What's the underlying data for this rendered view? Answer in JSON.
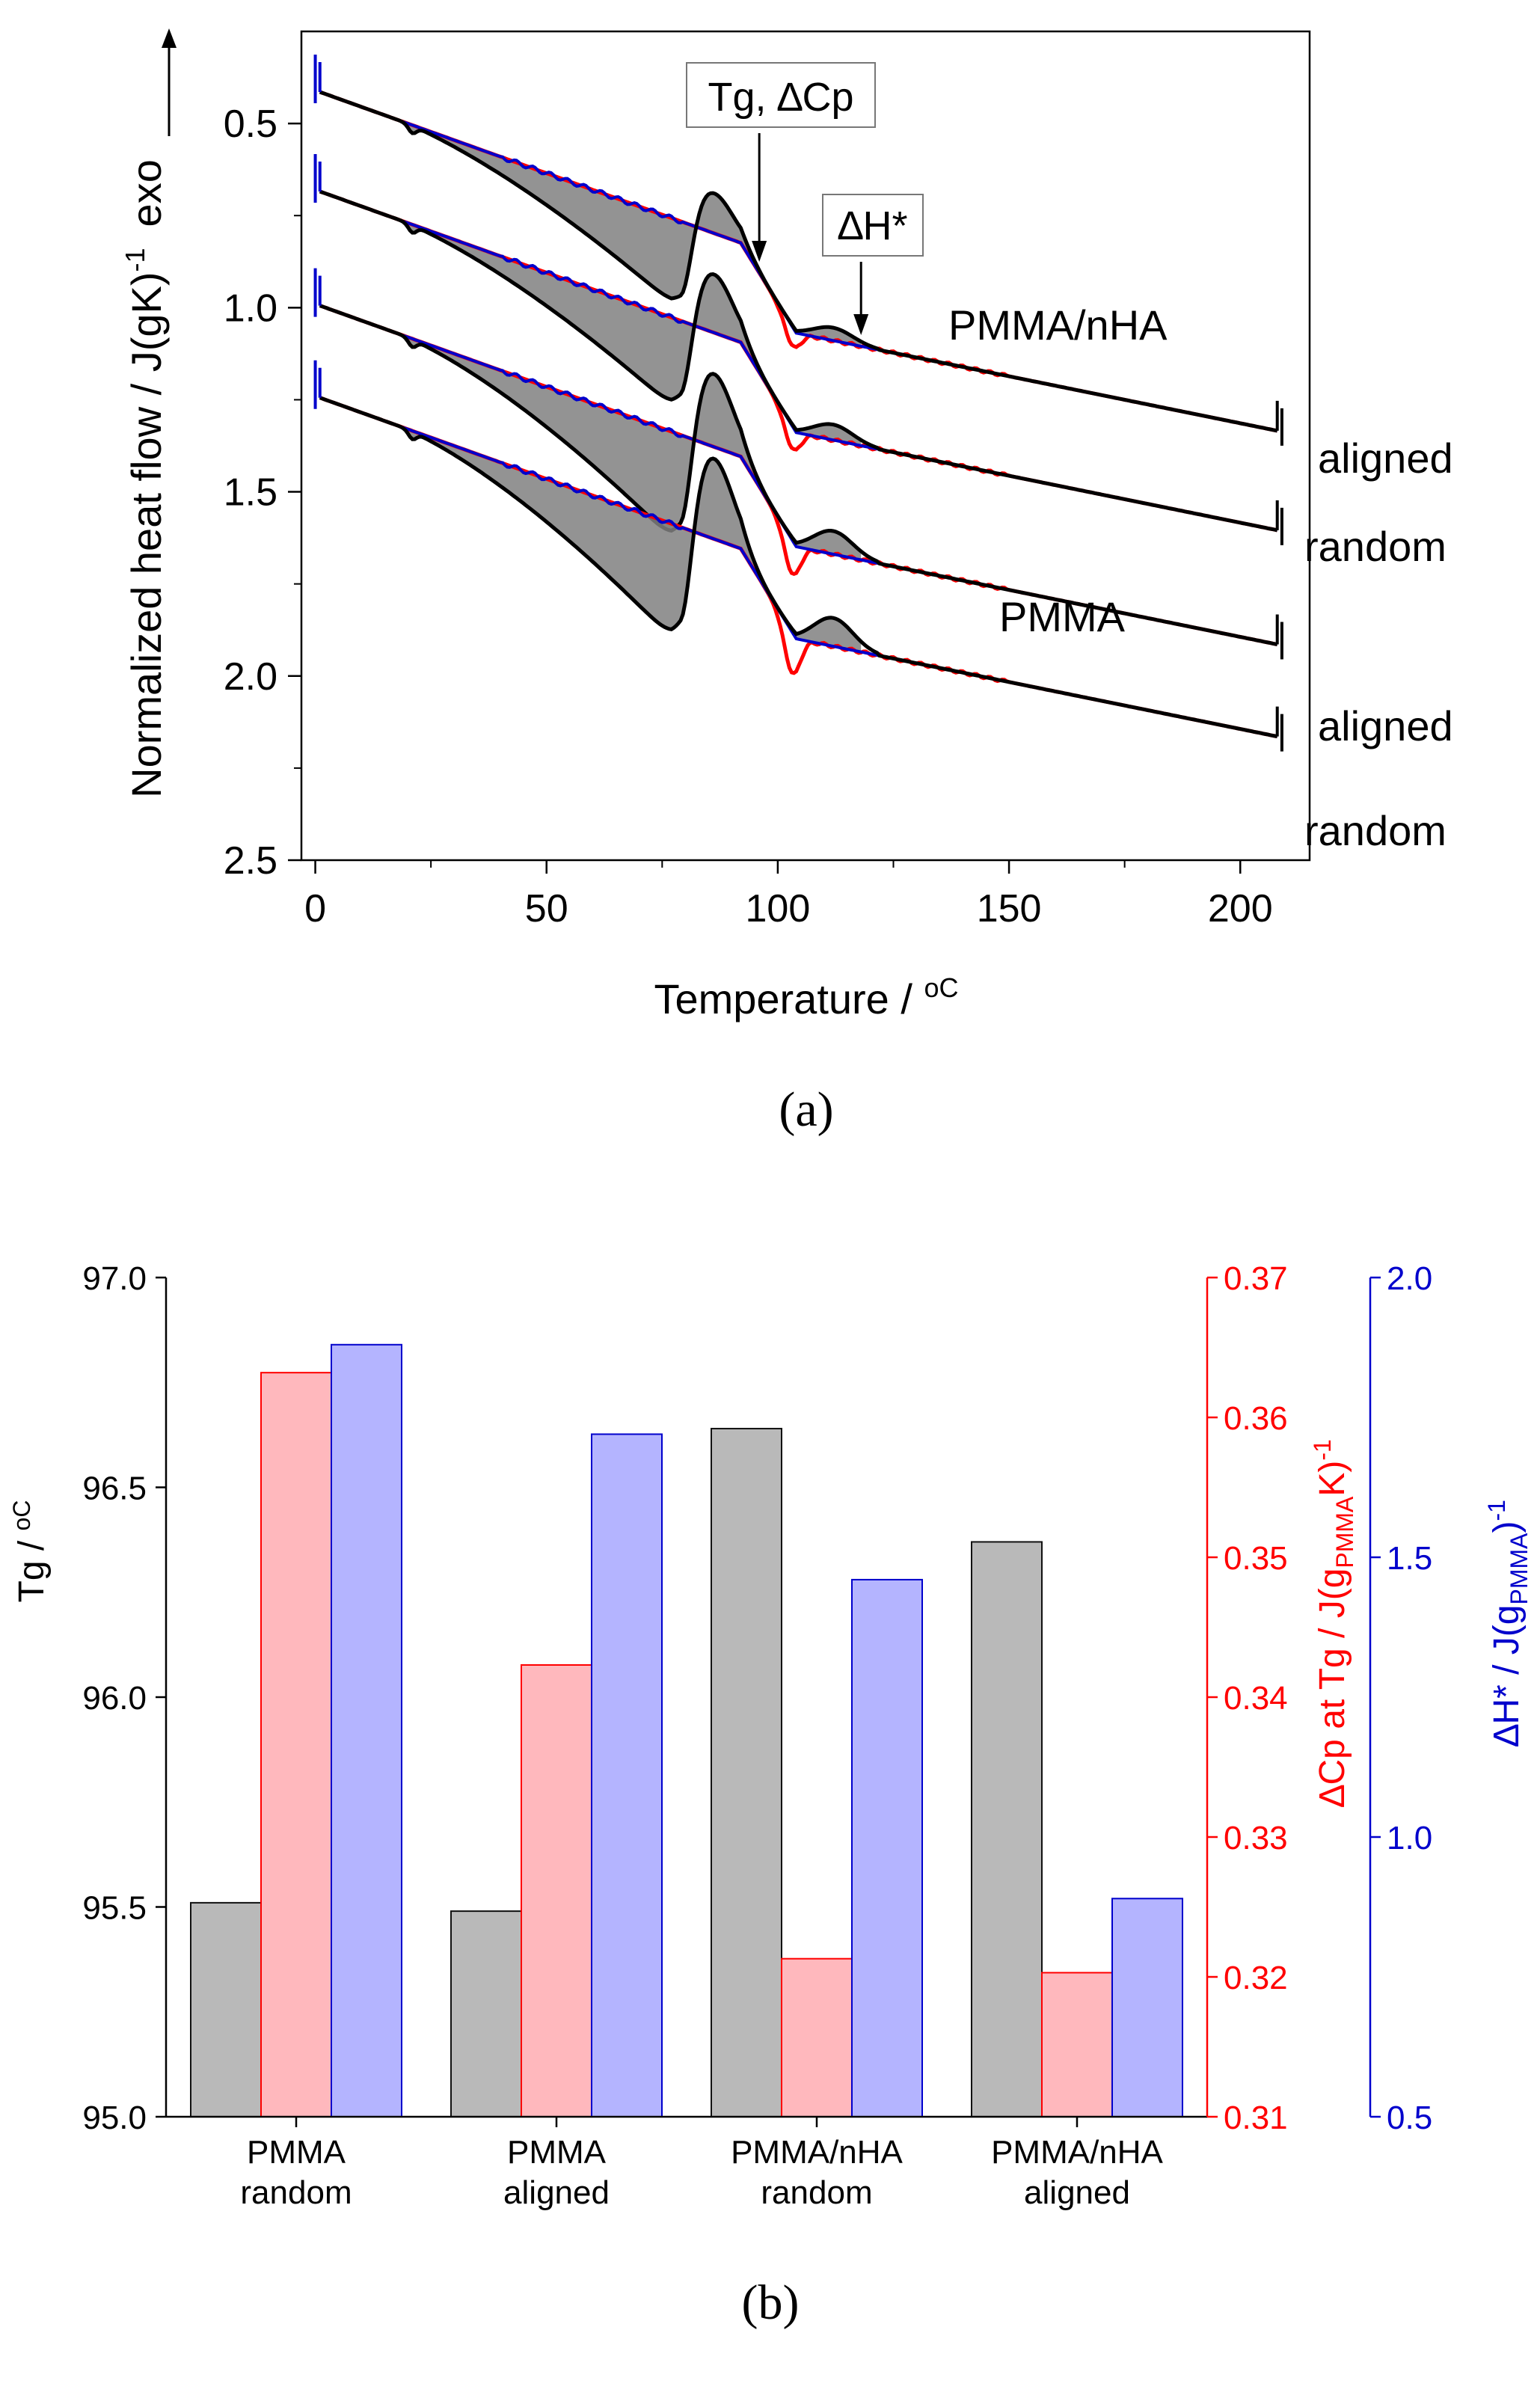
{
  "chart_data": [
    {
      "panel": "(a)",
      "type": "line",
      "xlabel": "Temperature / ",
      "xlabel_unit": "oC",
      "ylabel": "Normalized heat flow / J(gK)",
      "ylabel_sup": "-1",
      "ylabel_suffix": "exo",
      "xlim": [
        -3,
        215
      ],
      "ylim": [
        2.5,
        0.25
      ],
      "y_inverted": true,
      "xticks": [
        0,
        50,
        100,
        150,
        200
      ],
      "yticks": [
        0.5,
        1.0,
        1.5,
        2.0,
        2.5
      ],
      "ytick_labels": [
        "0.5",
        "1.0",
        "1.5",
        "2.0",
        "2.5"
      ],
      "annotations": {
        "tg_dcp": "Tg, ∆Cp",
        "dh": "∆H*",
        "tg_temperature": 96,
        "dh_temperature": 118
      },
      "group_labels": [
        "PMMA/nHA",
        "PMMA"
      ],
      "series_colors": {
        "scan_black": "#000000",
        "scan_red": "#ff0000",
        "scan_blue": "#0000cc",
        "fill": "#808080"
      },
      "series": [
        {
          "name": "aligned",
          "group": "PMMA/nHA",
          "offset": 0.0,
          "bump": 0.11,
          "valley_depth": 0.23,
          "overshoot": 0.05
        },
        {
          "name": "random",
          "group": "PMMA/nHA",
          "offset": 0.27,
          "bump": 0.16,
          "valley_depth": 0.24,
          "overshoot": 0.06
        },
        {
          "name": "aligned",
          "group": "PMMA",
          "offset": 0.58,
          "bump": 0.2,
          "valley_depth": 0.29,
          "overshoot": 0.09
        },
        {
          "name": "random",
          "group": "PMMA",
          "offset": 0.83,
          "bump": 0.22,
          "valley_depth": 0.31,
          "overshoot": 0.11
        }
      ]
    },
    {
      "panel": "(b)",
      "type": "bar",
      "categories": [
        [
          "PMMA",
          "random"
        ],
        [
          "PMMA",
          "aligned"
        ],
        [
          "PMMA/nHA",
          "random"
        ],
        [
          "PMMA/nHA",
          "aligned"
        ]
      ],
      "series": [
        {
          "name": "Tg",
          "axis": "left",
          "values": [
            95.51,
            95.49,
            96.64,
            96.37
          ],
          "fill": "#b9b9b9",
          "stroke": "#111111"
        },
        {
          "name": "ΔCp at Tg",
          "axis": "right1",
          "values": [
            0.3632,
            0.3423,
            0.3213,
            0.3203
          ],
          "fill": "#ffb8bd",
          "stroke": "#ff0000"
        },
        {
          "name": "ΔH*",
          "axis": "right2",
          "values": [
            1.88,
            1.72,
            1.46,
            0.89
          ],
          "fill": "#b4b4ff",
          "stroke": "#0000cc"
        }
      ],
      "axes": {
        "left": {
          "label": "Tg / ",
          "unit": "oC",
          "ylim": [
            95.0,
            97.0
          ],
          "ticks": [
            "95.0",
            "95.5",
            "96.0",
            "96.5",
            "97.0"
          ],
          "color": "#000000"
        },
        "right1": {
          "label": "∆Cp at Tg / J(g",
          "sub": "PMMA",
          "label_tail": "K)",
          "sup": "-1",
          "ylim": [
            0.31,
            0.37
          ],
          "ticks": [
            "0.31",
            "0.32",
            "0.33",
            "0.34",
            "0.35",
            "0.36",
            "0.37"
          ],
          "color": "#ff0000"
        },
        "right2": {
          "label": "∆H* / J(g",
          "sub": "PMMA",
          "label_tail": ")",
          "sup": "-1",
          "ylim": [
            0.5,
            2.0
          ],
          "ticks": [
            "0.5",
            "1.0",
            "1.5",
            "2.0"
          ],
          "color": "#0000cc"
        }
      }
    }
  ]
}
